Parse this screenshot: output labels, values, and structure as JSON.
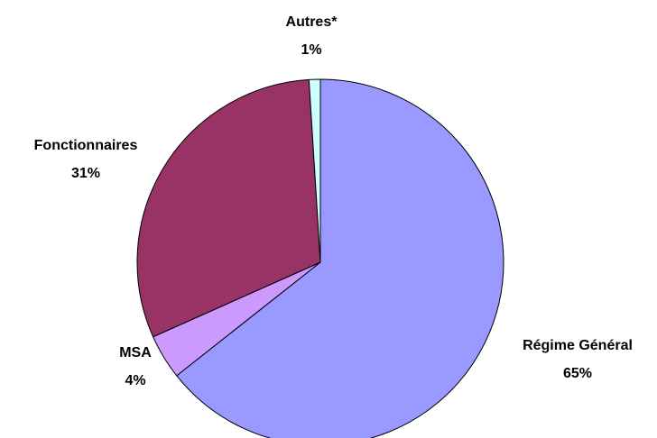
{
  "chart_data": {
    "type": "pie",
    "categories": [
      "Régime Général",
      "MSA",
      "Fonctionnaires",
      "Autres*"
    ],
    "values": [
      65,
      4,
      31,
      1
    ],
    "value_labels": [
      "65%",
      "4%",
      "31%",
      "1%"
    ],
    "colors": [
      "#9999ff",
      "#cc99ff",
      "#993366",
      "#ccffff"
    ]
  }
}
